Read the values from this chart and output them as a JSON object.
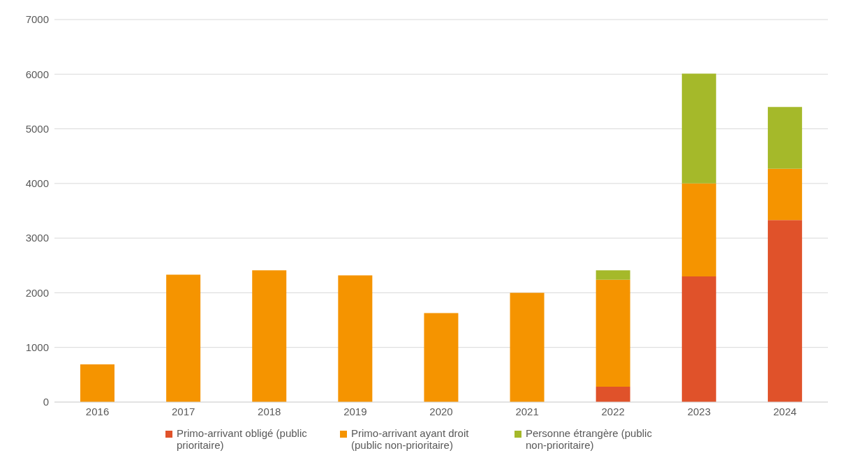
{
  "chart_data": {
    "type": "bar",
    "stacked": true,
    "categories": [
      "2016",
      "2017",
      "2018",
      "2019",
      "2020",
      "2021",
      "2022",
      "2023",
      "2024"
    ],
    "series": [
      {
        "name": "Primo-arrivant obligé (public prioritaire)",
        "color": "#e0522a",
        "values": [
          0,
          0,
          0,
          0,
          0,
          0,
          280,
          2300,
          3330
        ]
      },
      {
        "name": "Primo-arrivant ayant droit (public non-prioritaire)",
        "color": "#f59400",
        "values": [
          690,
          2330,
          2410,
          2320,
          1630,
          2000,
          1960,
          1700,
          940
        ]
      },
      {
        "name": "Personne étrangère (public non-prioritaire)",
        "color": "#a5b92a",
        "values": [
          0,
          0,
          0,
          0,
          0,
          0,
          170,
          2010,
          1130
        ]
      }
    ],
    "ylim": [
      0,
      7000
    ],
    "yticks": [
      0,
      1000,
      2000,
      3000,
      4000,
      5000,
      6000,
      7000
    ],
    "grid": "y",
    "legend": "bottom"
  }
}
